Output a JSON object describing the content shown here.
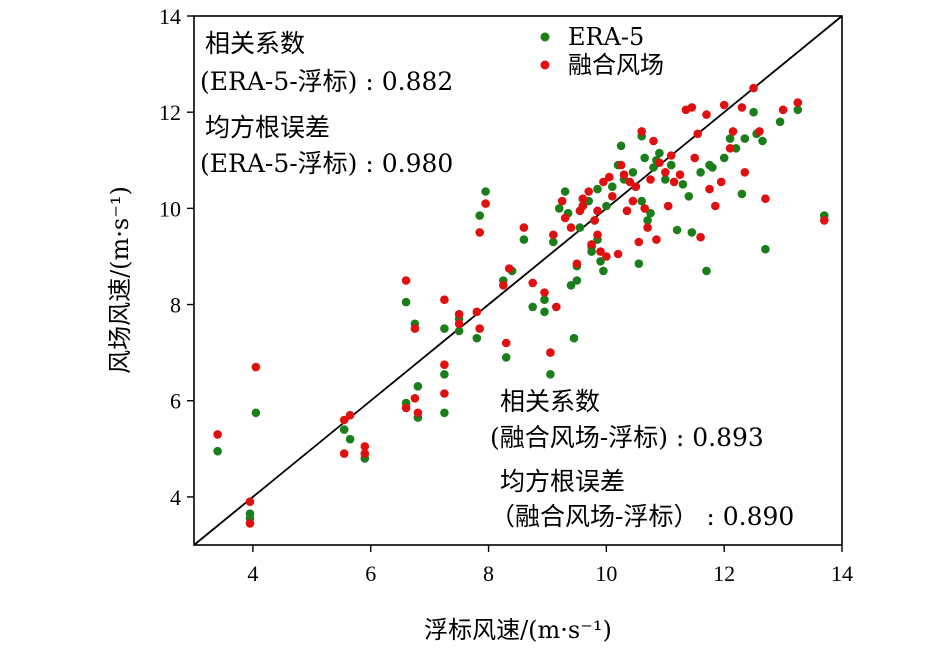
{
  "chart_data": {
    "type": "scatter",
    "xlabel": "浮标风速/(m·s⁻¹)",
    "ylabel": "风场风速/(m·s⁻¹)",
    "xlim": [
      3,
      14
    ],
    "ylim": [
      3,
      14
    ],
    "x_ticks": [
      "4",
      "6",
      "8",
      "10",
      "12",
      "14"
    ],
    "y_ticks": [
      "4",
      "6",
      "8",
      "10",
      "12",
      "14"
    ],
    "reference_line": "1:1",
    "legend_position": "top-center",
    "colors": {
      "ERA-5": "#1a7f1a",
      "融合风场": "#e01010",
      "reference": "#000000"
    },
    "annotations": {
      "era5_corr_title": "相关系数",
      "era5_corr_line": "(ERA-5-浮标) : 0.882",
      "era5_rmse_title": "均方根误差",
      "era5_rmse_line": "(ERA-5-浮标) : 0.980",
      "fused_corr_title": "相关系数",
      "fused_corr_line": "(融合风场-浮标) : 0.893",
      "fused_rmse_title": "均方根误差",
      "fused_rmse_line": "（融合风场-浮标） : 0.890"
    },
    "series": [
      {
        "name": "ERA-5",
        "color": "#1a7f1a",
        "points": [
          [
            3.4,
            4.95
          ],
          [
            3.95,
            3.65
          ],
          [
            3.95,
            3.55
          ],
          [
            4.05,
            5.75
          ],
          [
            5.55,
            5.4
          ],
          [
            5.65,
            5.2
          ],
          [
            5.9,
            4.8
          ],
          [
            6.6,
            5.95
          ],
          [
            6.6,
            8.05
          ],
          [
            6.75,
            7.6
          ],
          [
            6.8,
            5.65
          ],
          [
            6.8,
            6.3
          ],
          [
            7.25,
            5.75
          ],
          [
            7.25,
            6.55
          ],
          [
            7.25,
            7.5
          ],
          [
            7.5,
            7.45
          ],
          [
            7.5,
            7.7
          ],
          [
            7.8,
            7.3
          ],
          [
            7.85,
            9.85
          ],
          [
            7.95,
            10.35
          ],
          [
            8.25,
            8.5
          ],
          [
            8.3,
            6.9
          ],
          [
            8.4,
            8.7
          ],
          [
            8.6,
            9.35
          ],
          [
            8.75,
            7.95
          ],
          [
            8.95,
            8.1
          ],
          [
            8.95,
            7.85
          ],
          [
            9.05,
            6.55
          ],
          [
            9.1,
            9.3
          ],
          [
            9.2,
            10.0
          ],
          [
            9.3,
            10.35
          ],
          [
            9.35,
            9.9
          ],
          [
            9.4,
            8.4
          ],
          [
            9.45,
            7.3
          ],
          [
            9.5,
            8.8
          ],
          [
            9.5,
            8.5
          ],
          [
            9.55,
            9.6
          ],
          [
            9.6,
            10.05
          ],
          [
            9.7,
            10.15
          ],
          [
            9.75,
            9.1
          ],
          [
            9.75,
            9.2
          ],
          [
            9.8,
            9.75
          ],
          [
            9.85,
            9.35
          ],
          [
            9.85,
            10.4
          ],
          [
            9.9,
            8.9
          ],
          [
            9.95,
            8.7
          ],
          [
            10.0,
            10.05
          ],
          [
            10.1,
            10.45
          ],
          [
            10.2,
            10.9
          ],
          [
            10.25,
            11.3
          ],
          [
            10.3,
            10.6
          ],
          [
            10.35,
            9.95
          ],
          [
            10.45,
            10.75
          ],
          [
            10.5,
            10.45
          ],
          [
            10.55,
            8.85
          ],
          [
            10.6,
            10.15
          ],
          [
            10.6,
            11.5
          ],
          [
            10.65,
            11.05
          ],
          [
            10.7,
            9.75
          ],
          [
            10.75,
            9.9
          ],
          [
            10.8,
            10.85
          ],
          [
            10.85,
            11.0
          ],
          [
            10.9,
            11.15
          ],
          [
            11.0,
            10.6
          ],
          [
            11.05,
            10.05
          ],
          [
            11.1,
            10.9
          ],
          [
            11.2,
            9.55
          ],
          [
            11.3,
            10.5
          ],
          [
            11.4,
            10.25
          ],
          [
            11.45,
            9.5
          ],
          [
            11.6,
            10.75
          ],
          [
            11.7,
            8.7
          ],
          [
            11.75,
            10.9
          ],
          [
            11.8,
            10.85
          ],
          [
            12.0,
            11.05
          ],
          [
            12.1,
            11.45
          ],
          [
            12.2,
            11.25
          ],
          [
            12.3,
            10.3
          ],
          [
            12.35,
            11.45
          ],
          [
            12.5,
            12.0
          ],
          [
            12.55,
            11.55
          ],
          [
            12.65,
            11.4
          ],
          [
            12.7,
            9.15
          ],
          [
            12.95,
            11.8
          ],
          [
            13.25,
            12.05
          ],
          [
            13.7,
            9.85
          ]
        ]
      },
      {
        "name": "融合风场",
        "color": "#e01010",
        "points": [
          [
            3.4,
            5.3
          ],
          [
            3.95,
            3.9
          ],
          [
            3.95,
            3.45
          ],
          [
            4.05,
            6.7
          ],
          [
            5.55,
            5.6
          ],
          [
            5.55,
            4.9
          ],
          [
            5.65,
            5.7
          ],
          [
            5.9,
            5.05
          ],
          [
            5.9,
            4.9
          ],
          [
            6.6,
            5.85
          ],
          [
            6.6,
            8.5
          ],
          [
            6.75,
            6.05
          ],
          [
            6.75,
            7.5
          ],
          [
            6.8,
            5.75
          ],
          [
            7.25,
            6.75
          ],
          [
            7.25,
            6.15
          ],
          [
            7.25,
            8.1
          ],
          [
            7.5,
            7.8
          ],
          [
            7.5,
            7.6
          ],
          [
            7.8,
            7.85
          ],
          [
            7.85,
            9.5
          ],
          [
            7.85,
            7.5
          ],
          [
            7.95,
            10.1
          ],
          [
            8.25,
            8.4
          ],
          [
            8.3,
            7.2
          ],
          [
            8.35,
            8.75
          ],
          [
            8.6,
            9.6
          ],
          [
            8.75,
            8.45
          ],
          [
            8.95,
            8.25
          ],
          [
            9.05,
            7.0
          ],
          [
            9.1,
            9.45
          ],
          [
            9.15,
            7.95
          ],
          [
            9.25,
            10.15
          ],
          [
            9.3,
            9.8
          ],
          [
            9.4,
            9.6
          ],
          [
            9.5,
            8.85
          ],
          [
            9.55,
            9.95
          ],
          [
            9.6,
            10.05
          ],
          [
            9.7,
            10.35
          ],
          [
            9.75,
            9.25
          ],
          [
            9.8,
            9.75
          ],
          [
            9.85,
            9.95
          ],
          [
            9.85,
            9.45
          ],
          [
            9.9,
            9.1
          ],
          [
            9.95,
            10.55
          ],
          [
            10.0,
            9.0
          ],
          [
            10.1,
            10.25
          ],
          [
            10.2,
            9.05
          ],
          [
            10.25,
            10.9
          ],
          [
            10.3,
            10.7
          ],
          [
            10.35,
            9.95
          ],
          [
            10.4,
            10.55
          ],
          [
            10.5,
            10.45
          ],
          [
            10.55,
            9.3
          ],
          [
            10.6,
            11.6
          ],
          [
            10.65,
            10.0
          ],
          [
            10.7,
            9.6
          ],
          [
            10.75,
            10.6
          ],
          [
            10.8,
            11.4
          ],
          [
            10.85,
            9.35
          ],
          [
            10.9,
            10.95
          ],
          [
            11.0,
            10.75
          ],
          [
            11.05,
            10.05
          ],
          [
            11.1,
            11.1
          ],
          [
            11.15,
            10.55
          ],
          [
            11.25,
            10.7
          ],
          [
            11.35,
            12.05
          ],
          [
            11.45,
            12.1
          ],
          [
            11.5,
            11.05
          ],
          [
            11.6,
            9.4
          ],
          [
            11.7,
            11.95
          ],
          [
            11.75,
            10.4
          ],
          [
            11.85,
            10.05
          ],
          [
            11.95,
            10.55
          ],
          [
            12.0,
            12.15
          ],
          [
            12.1,
            11.25
          ],
          [
            12.15,
            11.6
          ],
          [
            12.3,
            12.1
          ],
          [
            12.35,
            10.75
          ],
          [
            12.5,
            12.5
          ],
          [
            12.6,
            11.6
          ],
          [
            12.7,
            10.2
          ],
          [
            13.0,
            12.05
          ],
          [
            13.25,
            12.2
          ],
          [
            13.7,
            9.75
          ],
          [
            10.05,
            10.65
          ],
          [
            10.45,
            10.15
          ],
          [
            9.6,
            10.2
          ],
          [
            11.55,
            11.55
          ]
        ]
      }
    ]
  }
}
